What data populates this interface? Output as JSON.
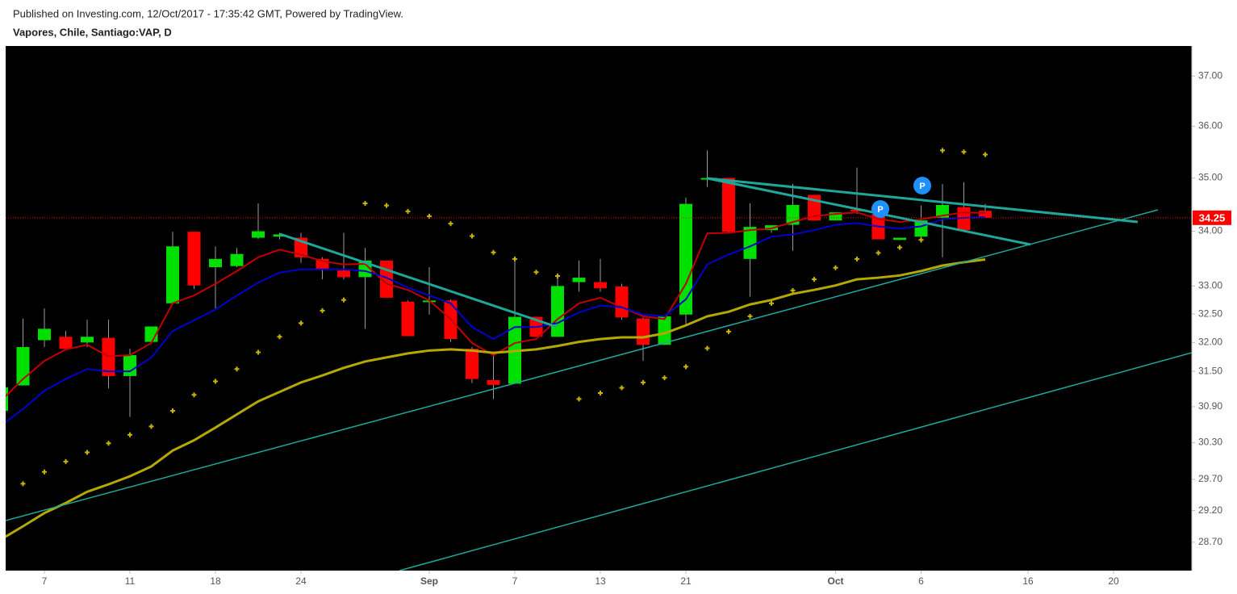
{
  "header": {
    "published": "Published on Investing.com, 12/Oct/2017 - 17:35:42 GMT, Powered by TradingView.",
    "symbol": "Vapores, Chile, Santiago:VAP, D"
  },
  "chart_data": {
    "type": "candlestick",
    "categories": [
      null,
      null,
      "7",
      null,
      null,
      null,
      "11",
      null,
      null,
      null,
      "18",
      null,
      null,
      null,
      "24",
      null,
      null,
      null,
      null,
      null,
      "Sep",
      null,
      null,
      null,
      "7",
      null,
      null,
      null,
      "13",
      null,
      null,
      null,
      "21",
      null,
      null,
      null,
      null,
      null,
      null,
      "Oct",
      null,
      null,
      null,
      "6",
      null,
      null,
      null,
      null,
      "16",
      null,
      null,
      null,
      "20",
      null,
      null,
      null
    ],
    "open": [
      30.83,
      31.26,
      32.04,
      32.1,
      32.0,
      32.08,
      31.42,
      32.01,
      32.69,
      33.99,
      33.34,
      33.36,
      33.88,
      33.9,
      33.88,
      33.49,
      33.28,
      33.16,
      33.46,
      32.72,
      32.74,
      32.74,
      31.89,
      31.35,
      31.29,
      32.45,
      32.1,
      33.07,
      33.07,
      32.99,
      32.42,
      31.96,
      32.49,
      34.98,
      35.0,
      33.49,
      34.02,
      34.12,
      34.68,
      34.2,
      34.4,
      34.32,
      33.84,
      33.9,
      34.25,
      34.45,
      34.38,
      null,
      null,
      null,
      null,
      null,
      null,
      null,
      null,
      null
    ],
    "high": [
      31.25,
      32.42,
      32.6,
      32.2,
      32.4,
      32.4,
      31.89,
      32.28,
      33.99,
      33.99,
      33.72,
      33.69,
      34.52,
      33.97,
      33.97,
      33.52,
      33.97,
      33.69,
      33.46,
      32.74,
      33.34,
      32.76,
      31.92,
      31.82,
      33.52,
      32.45,
      33.22,
      33.46,
      33.49,
      33.04,
      32.44,
      32.46,
      34.63,
      35.53,
      35.0,
      34.52,
      34.11,
      34.89,
      34.68,
      34.35,
      35.2,
      34.32,
      33.88,
      34.48,
      34.89,
      34.92,
      34.51,
      null,
      null,
      null,
      null,
      null,
      null,
      null,
      null,
      null
    ],
    "low": [
      30.8,
      31.26,
      31.92,
      31.86,
      31.92,
      31.21,
      30.73,
      32.0,
      32.69,
      32.95,
      32.6,
      33.34,
      33.85,
      33.85,
      33.42,
      33.12,
      33.12,
      32.24,
      32.79,
      32.11,
      32.49,
      32.01,
      31.3,
      31.03,
      31.29,
      32.1,
      32.1,
      32.9,
      32.9,
      32.4,
      31.68,
      31.96,
      32.28,
      34.83,
      33.97,
      32.81,
      33.97,
      33.64,
      34.2,
      34.2,
      34.32,
      33.85,
      33.84,
      33.79,
      33.52,
      34.02,
      34.25,
      null,
      null,
      null,
      null,
      null,
      null,
      null,
      null,
      null
    ],
    "close": [
      31.23,
      31.92,
      32.24,
      31.89,
      32.1,
      31.42,
      31.78,
      32.28,
      33.72,
      33.01,
      33.49,
      33.58,
      34.0,
      33.94,
      33.52,
      33.3,
      33.16,
      33.46,
      32.79,
      32.11,
      32.74,
      32.06,
      31.37,
      31.27,
      32.45,
      32.1,
      33.0,
      33.15,
      32.96,
      32.44,
      31.96,
      32.46,
      34.51,
      35.0,
      33.99,
      34.08,
      34.11,
      34.49,
      34.2,
      34.35,
      34.38,
      33.85,
      33.88,
      34.2,
      34.49,
      34.02,
      34.25,
      null,
      null,
      null,
      null,
      null,
      null,
      null,
      null,
      null
    ],
    "up_color": "#00e000",
    "down_color": "#ff0000",
    "wick_color": "#9a9a9a",
    "overlays": [
      {
        "type": "line",
        "color": "#c00000",
        "width": 2,
        "values": [
          31.01,
          31.37,
          31.68,
          31.88,
          31.96,
          31.76,
          31.78,
          31.99,
          32.69,
          32.83,
          33.04,
          33.27,
          33.52,
          33.66,
          33.57,
          33.45,
          33.39,
          33.4,
          33.04,
          32.93,
          32.74,
          32.41,
          31.99,
          31.78,
          31.99,
          32.06,
          32.41,
          32.69,
          32.79,
          32.62,
          32.46,
          32.41,
          33.04,
          33.96,
          33.97,
          34.02,
          34.05,
          34.17,
          34.28,
          34.32,
          34.35,
          34.23,
          34.17,
          34.22,
          34.29,
          34.35,
          34.34,
          null,
          null,
          null,
          null,
          null,
          null,
          null,
          null,
          null
        ]
      },
      {
        "type": "line",
        "color": "#0000cc",
        "width": 2,
        "values": [
          30.59,
          30.86,
          31.17,
          31.37,
          31.54,
          31.5,
          31.5,
          31.74,
          32.2,
          32.39,
          32.58,
          32.83,
          33.06,
          33.24,
          33.3,
          33.3,
          33.3,
          33.27,
          33.15,
          32.97,
          32.83,
          32.69,
          32.27,
          32.06,
          32.27,
          32.27,
          32.34,
          32.53,
          32.65,
          32.62,
          32.49,
          32.46,
          32.76,
          33.39,
          33.57,
          33.72,
          33.9,
          33.94,
          34.02,
          34.12,
          34.15,
          34.09,
          34.05,
          34.09,
          34.22,
          34.25,
          34.26,
          null,
          null,
          null,
          null,
          null,
          null,
          null,
          null,
          null
        ]
      },
      {
        "type": "line",
        "color": "#b5a800",
        "width": 3,
        "values": [
          28.75,
          28.95,
          29.16,
          29.32,
          29.5,
          29.62,
          29.75,
          29.91,
          30.17,
          30.34,
          30.55,
          30.77,
          30.99,
          31.15,
          31.31,
          31.43,
          31.56,
          31.67,
          31.74,
          31.81,
          31.86,
          31.88,
          31.86,
          31.82,
          31.85,
          31.88,
          31.94,
          32.01,
          32.06,
          32.09,
          32.09,
          32.16,
          32.3,
          32.46,
          32.54,
          32.67,
          32.75,
          32.86,
          32.93,
          33.01,
          33.12,
          33.15,
          33.19,
          33.27,
          33.37,
          33.43,
          33.48,
          null,
          null,
          null,
          null,
          null,
          null,
          null,
          null,
          null
        ]
      },
      {
        "type": "dots",
        "color": "#c8b400",
        "width": 1,
        "values": [
          null,
          29.63,
          29.82,
          29.99,
          30.14,
          30.29,
          30.43,
          30.57,
          30.83,
          31.1,
          31.33,
          31.54,
          31.83,
          32.1,
          32.34,
          32.56,
          32.75,
          34.52,
          34.48,
          34.37,
          34.28,
          34.14,
          33.91,
          33.61,
          33.49,
          33.25,
          33.18,
          31.03,
          31.13,
          31.22,
          31.31,
          31.39,
          31.58,
          31.9,
          32.19,
          32.46,
          32.69,
          32.92,
          33.12,
          33.33,
          33.49,
          33.6,
          33.7,
          33.84,
          35.53,
          35.5,
          35.45,
          null,
          null,
          null,
          null,
          null,
          null,
          null,
          null,
          null
        ]
      }
    ],
    "ylim": [
      28.26,
      37.61
    ],
    "log_scale": true,
    "yticks": [
      {
        "value": 37,
        "label": "37.00"
      },
      {
        "value": 36,
        "label": "36.00"
      },
      {
        "value": 35,
        "label": "35.00"
      },
      {
        "value": 34,
        "label": "34.00"
      },
      {
        "value": 33,
        "label": "33.00"
      },
      {
        "value": 32.5,
        "label": "32.50"
      },
      {
        "value": 32,
        "label": "32.00"
      },
      {
        "value": 31.5,
        "label": "31.50"
      },
      {
        "value": 30.9,
        "label": "30.90"
      },
      {
        "value": 30.3,
        "label": "30.30"
      },
      {
        "value": 29.7,
        "label": "29.70"
      },
      {
        "value": 29.2,
        "label": "29.20"
      },
      {
        "value": 28.7,
        "label": "28.70"
      }
    ],
    "last_price": 34.25,
    "last_price_color": "#ff0000",
    "markers": [
      {
        "label": "P"
      },
      {
        "label": "P"
      }
    ]
  }
}
